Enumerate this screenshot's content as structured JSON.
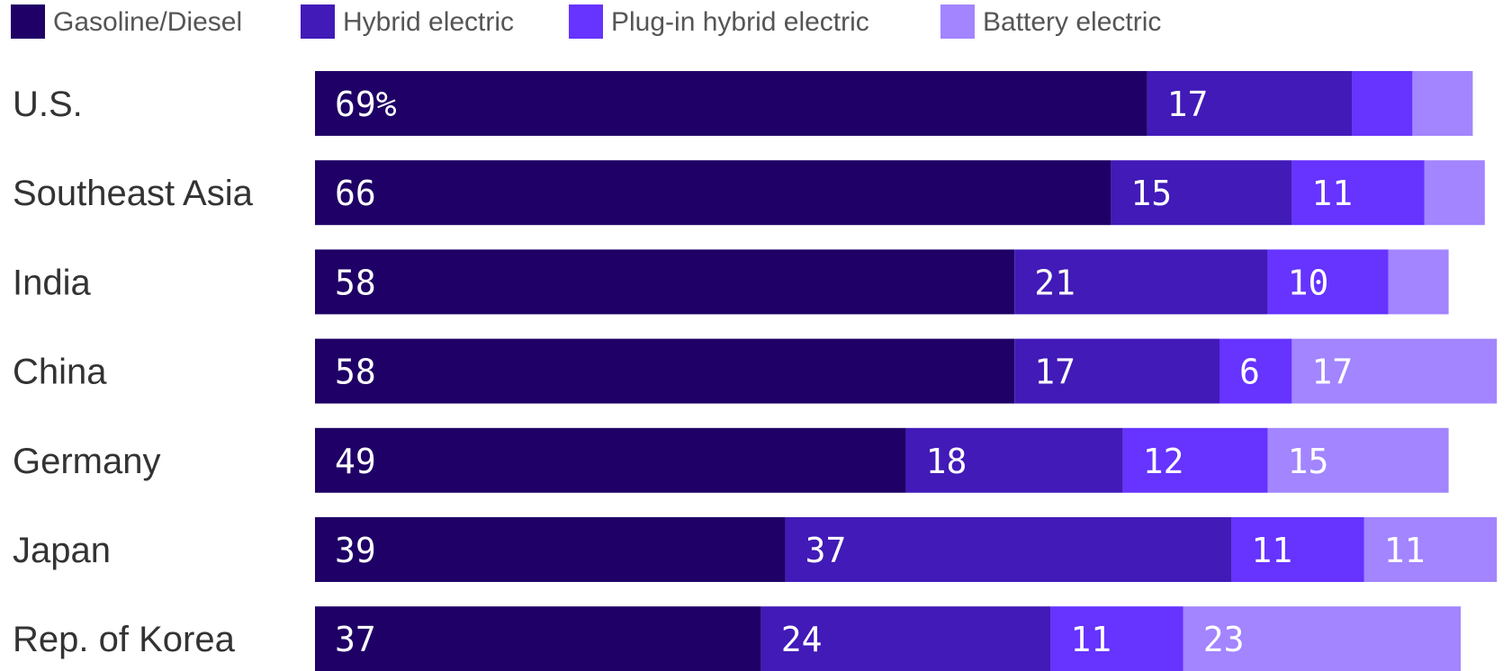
{
  "chart_data": {
    "type": "bar",
    "orientation": "horizontal",
    "stacked": true,
    "categories": [
      "U.S.",
      "Southeast Asia",
      "India",
      "China",
      "Germany",
      "Japan",
      "Rep. of Korea"
    ],
    "series": [
      {
        "name": "Gasoline/Diesel",
        "color": "#1f0066",
        "values": [
          69,
          66,
          58,
          58,
          49,
          39,
          37
        ],
        "labels": [
          "69%",
          "66",
          "58",
          "58",
          "49",
          "39",
          "37"
        ]
      },
      {
        "name": "Hybrid electric",
        "color": "#411ab8",
        "values": [
          17,
          15,
          21,
          17,
          18,
          37,
          24
        ],
        "labels": [
          "17",
          "15",
          "21",
          "17",
          "18",
          "37",
          "24"
        ]
      },
      {
        "name": "Plug-in hybrid electric",
        "color": "#6633ff",
        "values": [
          5,
          11,
          10,
          6,
          12,
          11,
          11
        ],
        "labels": [
          "",
          "11",
          "10",
          "6",
          "12",
          "11",
          "11"
        ]
      },
      {
        "name": "Battery electric",
        "color": "#a285ff",
        "values": [
          5,
          5,
          5,
          17,
          15,
          11,
          23
        ],
        "labels": [
          "",
          "",
          "",
          "17",
          "15",
          "11",
          "23"
        ]
      }
    ],
    "xlim": [
      0,
      100
    ],
    "grid": false,
    "legend_position": "top-left",
    "label_color": "#ffffff",
    "category_label_color": "#333333",
    "legend_text_color": "#555555"
  }
}
